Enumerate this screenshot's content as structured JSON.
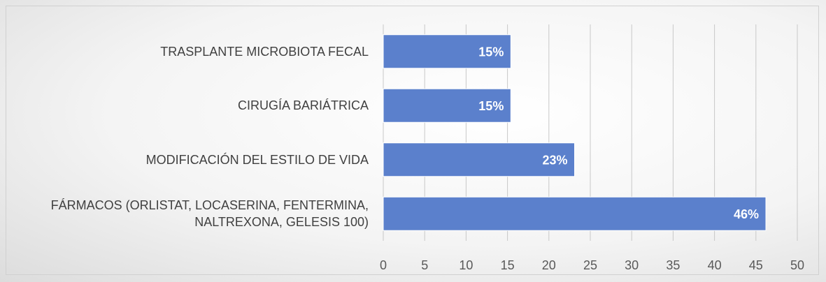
{
  "chart_data": {
    "type": "barh",
    "categories": [
      "TRASPLANTE MICROBIOTA FECAL",
      "CIRUGÍA BARIÁTRICA",
      "MODIFICACIÓN DEL ESTILO DE VIDA",
      "FÁRMACOS (ORLISTAT, LOCASERINA, FENTERMINA,\nNALTREXONA, GELESIS 100)"
    ],
    "values": [
      15.4,
      15.4,
      23.1,
      46.2
    ],
    "value_labels": [
      "15%",
      "15%",
      "23%",
      "46%"
    ],
    "color": "#5b80cc",
    "xlim": [
      0,
      50
    ],
    "xticks": [
      0,
      5,
      10,
      15,
      20,
      25,
      30,
      35,
      40,
      45,
      50
    ],
    "grid": true
  }
}
